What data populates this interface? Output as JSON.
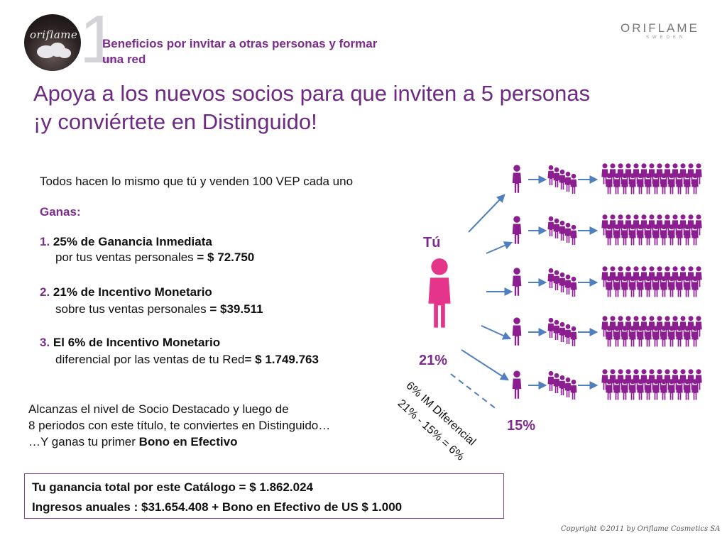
{
  "header": {
    "logo_text": "oriflame",
    "slide_number": "1",
    "section_title": "Beneficios por invitar a otras personas y formar una red",
    "brand": "ORIFLAME",
    "brand_sub": "SWEDEN"
  },
  "headline": "Apoya a los nuevos socios para que inviten a 5 personas ¡y conviértete en Distinguido!",
  "body": {
    "intro": "Todos hacen lo mismo que tú y venden 100 VEP cada uno",
    "earn_label": "Ganas:",
    "items": [
      {
        "num": "1.",
        "title": "25% de Ganancia Inmediata",
        "desc": "por tus ventas personales",
        "amount": "= $ 72.750"
      },
      {
        "num": "2.",
        "title": "21% de Incentivo Monetario",
        "desc": "sobre tus ventas personales",
        "amount": "= $39.511"
      },
      {
        "num": "3.",
        "title": "El 6% de Incentivo Monetario",
        "desc": "diferencial por las ventas  de tu Red",
        "amount": "= $ 1.749.763"
      }
    ],
    "note_line1": "Alcanzas el nivel de Socio Destacado y luego de",
    "note_line2": "8 periodos con este título, te conviertes en Distinguido…",
    "note_line3_prefix": "…Y ganas tu primer",
    "note_line3_bold": "Bono en Efectivo"
  },
  "totals": {
    "line1": "Tu ganancia total por este Catálogo = $ 1.862.024",
    "line2": "Ingresos anuales : $31.654.408 + Bono en Efectivo de US $ 1.000"
  },
  "diagram": {
    "you_label": "Tú",
    "you_pct": "21%",
    "downline_pct": "15%",
    "diff_label": "6% IM Diferencial",
    "diff_formula": "21% - 15% = 6%",
    "rows": 5,
    "figure_color": "#8b1f8f",
    "you_color": "#e5358a",
    "arrow_color": "#4f7fbf"
  },
  "footer": {
    "copyright": "Copyright ©2011 by Oriflame Cosmetics SA"
  }
}
